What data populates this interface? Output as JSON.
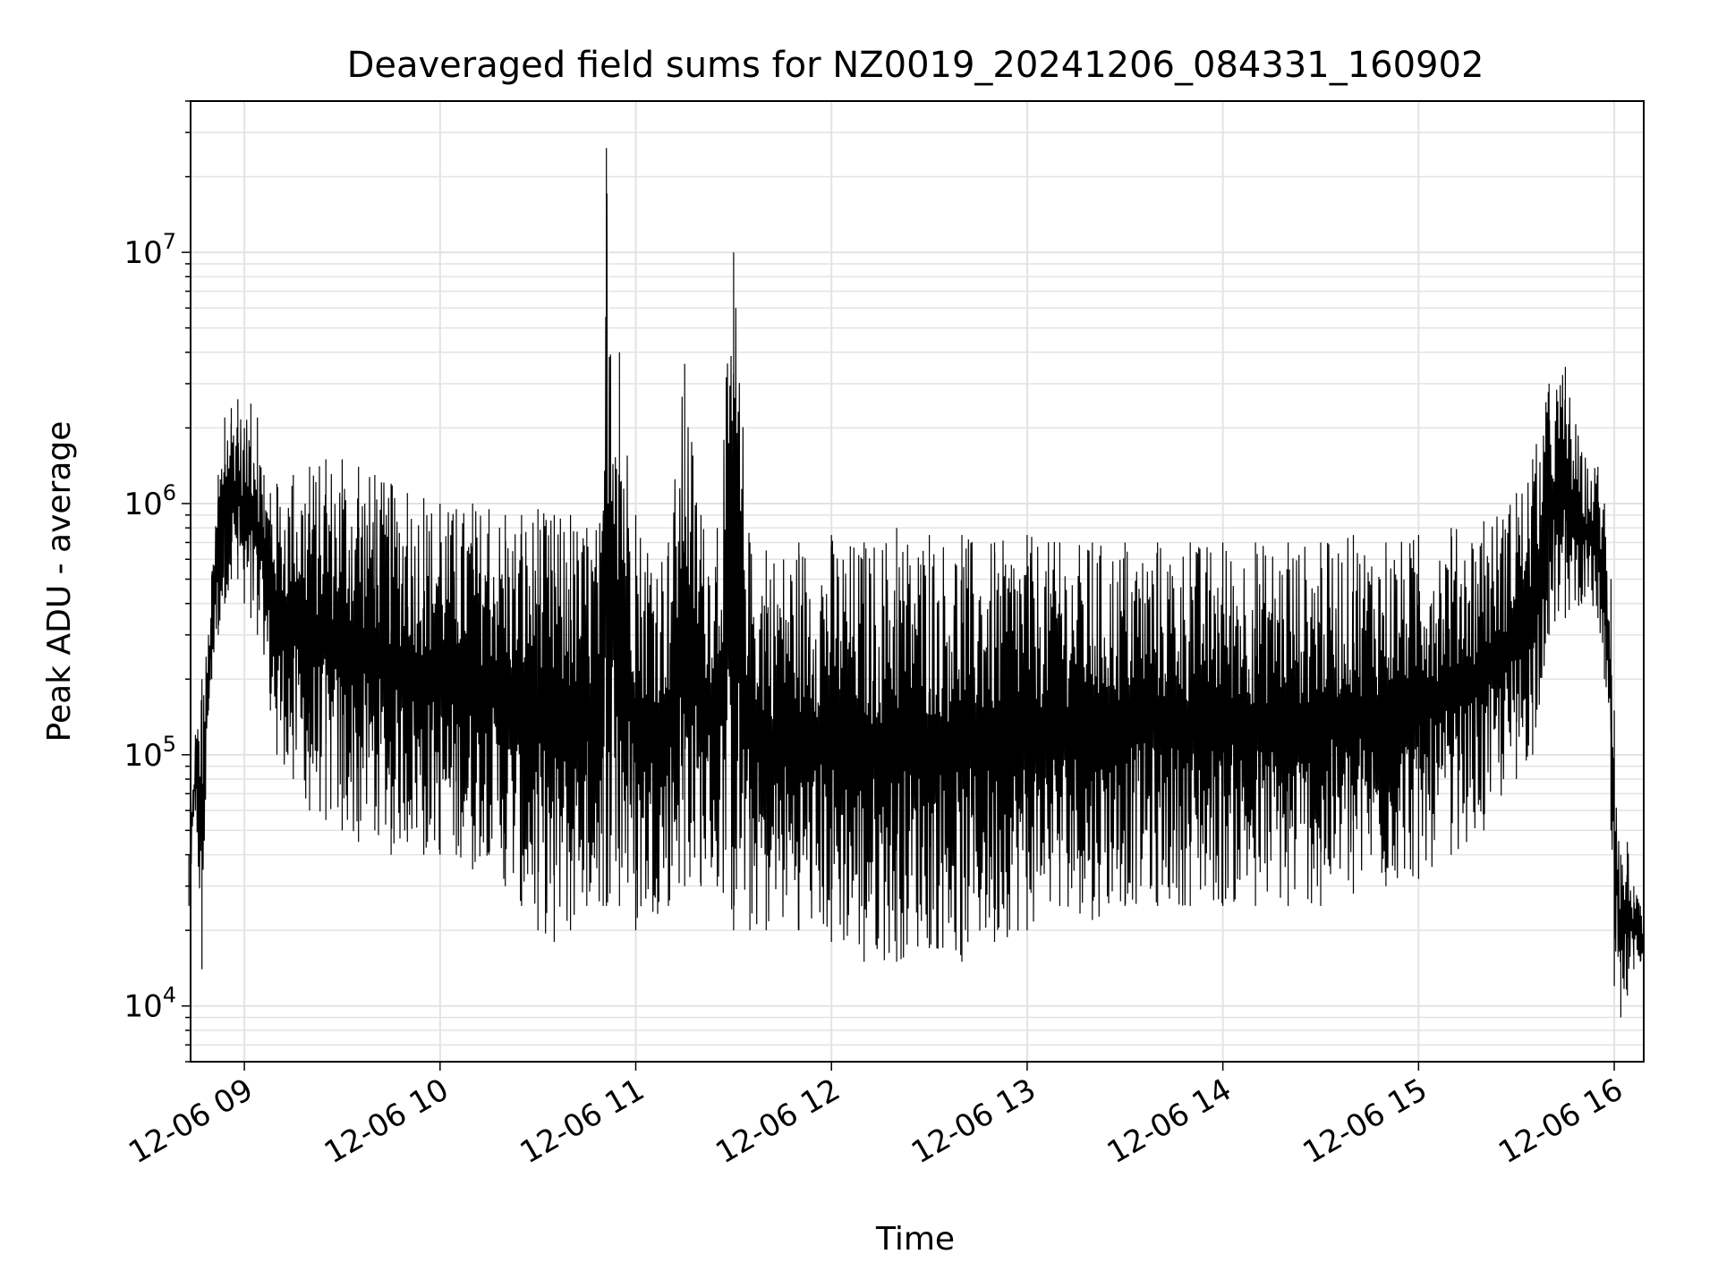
{
  "chart_data": {
    "type": "line",
    "title": "Deaveraged field sums for NZ0019_20241206_084331_160902",
    "xlabel": "Time",
    "ylabel": "Peak ADU - average",
    "yscale": "log",
    "xlim": [
      "2024-12-06 08:43:31",
      "2024-12-06 16:09:02"
    ],
    "ylim": [
      6000,
      40000000
    ],
    "x_ticks": [
      {
        "label": "12-06 09",
        "t": "09:00"
      },
      {
        "label": "12-06 10",
        "t": "10:00"
      },
      {
        "label": "12-06 11",
        "t": "11:00"
      },
      {
        "label": "12-06 12",
        "t": "12:00"
      },
      {
        "label": "12-06 13",
        "t": "13:00"
      },
      {
        "label": "12-06 14",
        "t": "14:00"
      },
      {
        "label": "12-06 15",
        "t": "15:00"
      },
      {
        "label": "12-06 16",
        "t": "16:00"
      }
    ],
    "y_ticks": [
      {
        "base": "10",
        "exp": "4",
        "value": 10000
      },
      {
        "base": "10",
        "exp": "5",
        "value": 100000
      },
      {
        "base": "10",
        "exp": "6",
        "value": 1000000
      },
      {
        "base": "10",
        "exp": "7",
        "value": 10000000
      }
    ],
    "grid": true,
    "line_color": "#000000",
    "series": [
      {
        "times": [
          "08:43",
          "08:45",
          "08:47",
          "08:49",
          "08:50",
          "08:52",
          "08:54",
          "08:56",
          "08:58",
          "09:00",
          "09:02",
          "09:04",
          "09:06",
          "09:08",
          "09:10",
          "09:15",
          "09:20",
          "09:25",
          "09:30",
          "09:35",
          "09:40",
          "09:45",
          "09:50",
          "09:55",
          "10:00",
          "10:05",
          "10:10",
          "10:15",
          "10:20",
          "10:25",
          "10:30",
          "10:35",
          "10:40",
          "10:45",
          "10:50",
          "10:51",
          "10:55",
          "11:00",
          "11:10",
          "11:15",
          "11:20",
          "11:25",
          "11:30",
          "11:35",
          "11:40",
          "11:50",
          "12:00",
          "12:10",
          "12:20",
          "12:30",
          "12:40",
          "12:50",
          "13:00",
          "13:10",
          "13:20",
          "13:30",
          "13:40",
          "13:50",
          "14:00",
          "14:10",
          "14:20",
          "14:30",
          "14:40",
          "14:50",
          "15:00",
          "15:10",
          "15:20",
          "15:30",
          "15:35",
          "15:40",
          "15:45",
          "15:50",
          "15:55",
          "15:57",
          "15:59",
          "16:00",
          "16:02",
          "16:04",
          "16:06",
          "16:08",
          "16:09"
        ],
        "envelope_high": [
          40000,
          120000,
          200000,
          300000,
          520000,
          1300000,
          2200000,
          2400000,
          2600000,
          2000000,
          2500000,
          2200000,
          1300000,
          1100000,
          1200000,
          1300000,
          1400000,
          1500000,
          1500000,
          1400000,
          1300000,
          1200000,
          1100000,
          1050000,
          1000000,
          950000,
          1000000,
          950000,
          900000,
          900000,
          950000,
          900000,
          900000,
          800000,
          900000,
          26000000,
          4000000,
          900000,
          700000,
          3600000,
          900000,
          800000,
          10000000,
          700000,
          650000,
          700000,
          750000,
          700000,
          800000,
          750000,
          750000,
          700000,
          750000,
          700000,
          700000,
          700000,
          700000,
          700000,
          700000,
          700000,
          700000,
          700000,
          750000,
          700000,
          750000,
          800000,
          850000,
          1100000,
          1500000,
          3000000,
          3500000,
          1600000,
          1400000,
          1000000,
          500000,
          150000,
          40000,
          45000,
          30000,
          25000,
          20000
        ],
        "envelope_low": [
          25000,
          60000,
          14000,
          150000,
          200000,
          300000,
          400000,
          500000,
          500000,
          400000,
          350000,
          300000,
          250000,
          150000,
          100000,
          80000,
          60000,
          55000,
          50000,
          45000,
          50000,
          40000,
          45000,
          40000,
          40000,
          40000,
          35000,
          40000,
          30000,
          25000,
          20000,
          18000,
          20000,
          25000,
          25000,
          25000,
          25000,
          20000,
          25000,
          30000,
          30000,
          30000,
          20000,
          20000,
          20000,
          20000,
          18000,
          15000,
          15000,
          17000,
          15000,
          18000,
          20000,
          25000,
          22000,
          25000,
          25000,
          25000,
          25000,
          25000,
          25000,
          25000,
          28000,
          30000,
          32000,
          40000,
          50000,
          80000,
          100000,
          300000,
          350000,
          400000,
          350000,
          200000,
          50000,
          12000,
          9000,
          11000,
          14000,
          15000,
          16000
        ]
      }
    ]
  }
}
